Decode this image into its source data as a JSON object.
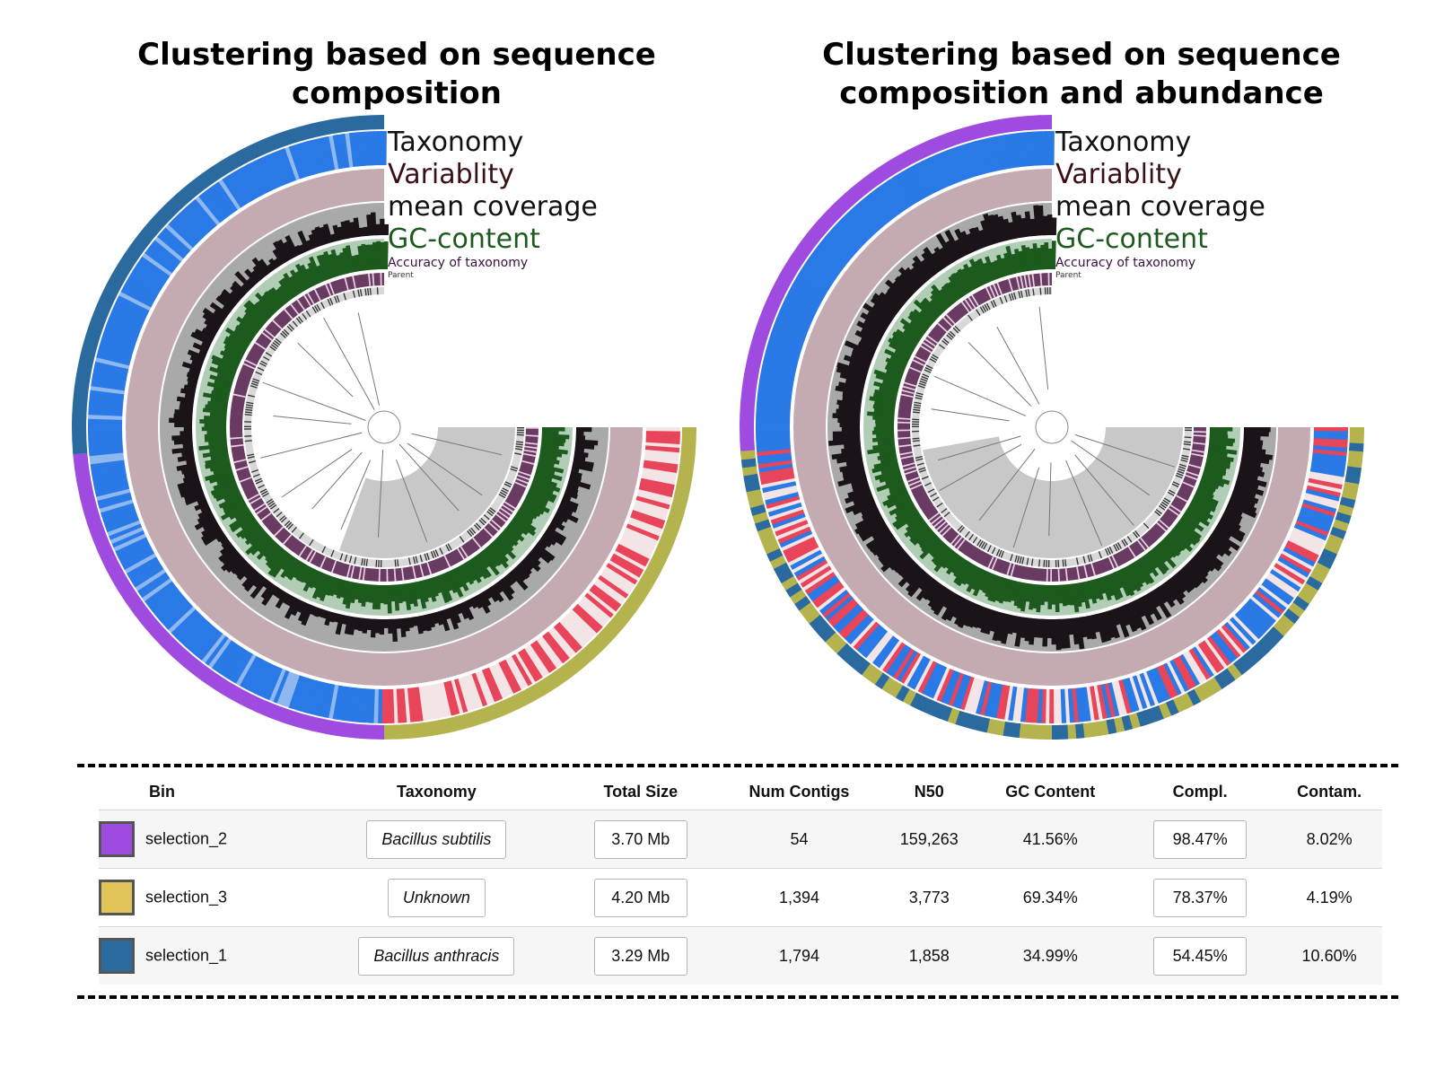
{
  "panels": {
    "left": {
      "title_line1": "Clustering based on sequence",
      "title_line2": "composition",
      "layers": {
        "taxonomy": "Taxonomy",
        "variability": "Variablity",
        "mean_coverage": "mean coverage",
        "gc_content": "GC-content",
        "accuracy": "Accuracy of taxonomy",
        "parent": "Parent"
      },
      "bin_order": [
        "selection_1",
        "selection_2",
        "selection_3"
      ]
    },
    "right": {
      "title_line1": "Clustering based on sequence",
      "title_line2": "composition and abundance",
      "layers": {
        "taxonomy": "Taxonomy",
        "variability": "Variablity",
        "mean_coverage": "mean coverage",
        "gc_content": "GC-content",
        "accuracy": "Accuracy of taxonomy",
        "parent": "Parent"
      },
      "bin_order": [
        "selection_2",
        "mixed"
      ]
    }
  },
  "colors": {
    "selection_2": "#a04be0",
    "selection_3": "#e0c45a",
    "selection_1": "#2a6a9e",
    "taxonomy_blue": "#2979e6",
    "taxonomy_red": "#e8445a",
    "variability": "#c4aab1",
    "coverage": "#1a1418",
    "gc_content": "#1d5a1d",
    "accuracy": "#4a1f45",
    "tree_bg": "#c8c8c8",
    "label_variability": "#3a1015",
    "label_gc": "#1d5a1d",
    "label_accuracy": "#3a1040"
  },
  "table": {
    "headers": {
      "bin": "Bin",
      "taxonomy": "Taxonomy",
      "total_size": "Total Size",
      "num_contigs": "Num Contigs",
      "n50": "N50",
      "gc": "GC Content",
      "compl": "Compl.",
      "contam": "Contam."
    },
    "rows": [
      {
        "bin": "selection_2",
        "color": "#a04be0",
        "taxonomy": "Bacillus subtilis",
        "total_size": "3.70 Mb",
        "num_contigs": "54",
        "n50": "159,263",
        "gc": "41.56%",
        "compl": "98.47%",
        "contam": "8.02%"
      },
      {
        "bin": "selection_3",
        "color": "#e0c45a",
        "taxonomy": "Unknown",
        "total_size": "4.20 Mb",
        "num_contigs": "1,394",
        "n50": "3,773",
        "gc": "69.34%",
        "compl": "78.37%",
        "contam": "4.19%"
      },
      {
        "bin": "selection_1",
        "color": "#2a6a9e",
        "taxonomy": "Bacillus anthracis",
        "total_size": "3.29 Mb",
        "num_contigs": "1,794",
        "n50": "1,858",
        "gc": "34.99%",
        "compl": "54.45%",
        "contam": "10.60%"
      }
    ]
  }
}
